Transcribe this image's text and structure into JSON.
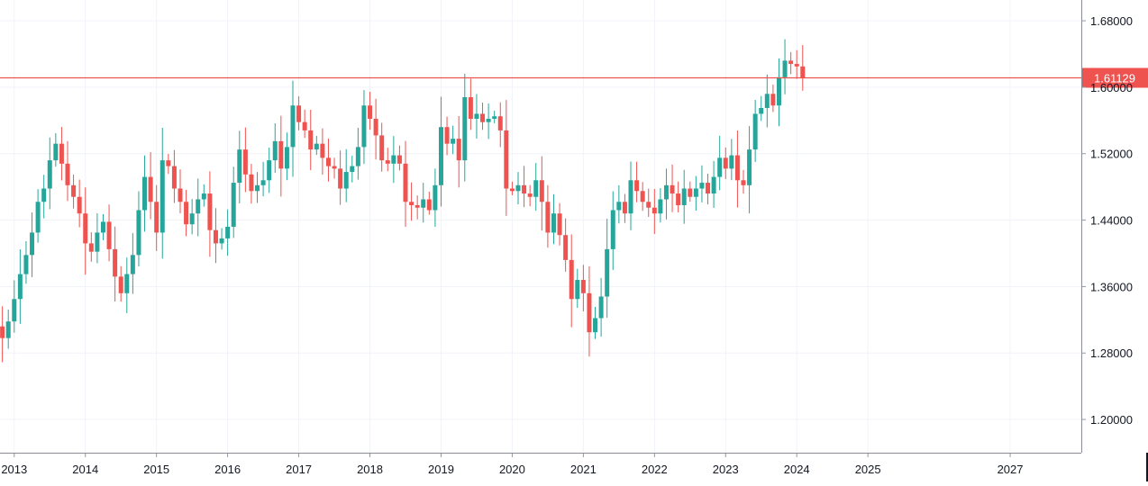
{
  "chart_data": {
    "type": "candlestick",
    "title": "",
    "xlabel": "",
    "ylabel": "",
    "ylim": [
      1.16,
      1.705
    ],
    "x_range": [
      2012.8,
      2028.0
    ],
    "y_ticks": [
      "1.68000",
      "1.60000",
      "1.52000",
      "1.44000",
      "1.36000",
      "1.28000",
      "1.20000"
    ],
    "x_ticks": [
      "2013",
      "2014",
      "2015",
      "2016",
      "2017",
      "2018",
      "2019",
      "2020",
      "2021",
      "2022",
      "2023",
      "2024",
      "2025",
      "2027"
    ],
    "grid": true,
    "up_color": "#26a69a",
    "down_color": "#ef5350",
    "price_line": {
      "value": 1.61129,
      "label": "1.61129",
      "color": "#ef5350"
    },
    "closes": [
      1.298,
      1.262,
      1.305,
      1.345,
      1.312,
      1.298,
      1.318,
      1.345,
      1.375,
      1.398,
      1.425,
      1.462,
      1.478,
      1.512,
      1.532,
      1.508,
      1.482,
      1.468,
      1.448,
      1.412,
      1.402,
      1.425,
      1.438,
      1.405,
      1.372,
      1.352,
      1.375,
      1.398,
      1.452,
      1.492,
      1.462,
      1.425,
      1.512,
      1.505,
      1.478,
      1.462,
      1.435,
      1.448,
      1.465,
      1.472,
      1.428,
      1.412,
      1.418,
      1.432,
      1.485,
      1.525,
      1.495,
      1.475,
      1.482,
      1.488,
      1.512,
      1.535,
      1.502,
      1.528,
      1.578,
      1.558,
      1.548,
      1.525,
      1.532,
      1.515,
      1.505,
      1.502,
      1.478,
      1.498,
      1.505,
      1.528,
      1.578,
      1.562,
      1.542,
      1.512,
      1.508,
      1.518,
      1.508,
      1.462,
      1.458,
      1.455,
      1.465,
      1.452,
      1.482,
      1.552,
      1.532,
      1.538,
      1.512,
      1.588,
      1.562,
      1.568,
      1.558,
      1.562,
      1.565,
      1.548,
      1.478,
      1.475,
      1.482,
      1.472,
      1.468,
      1.488,
      1.462,
      1.425,
      1.448,
      1.422,
      1.392,
      1.345,
      1.368,
      1.352,
      1.305,
      1.322,
      1.348,
      1.405,
      1.452,
      1.462,
      1.448,
      1.488,
      1.475,
      1.462,
      1.455,
      1.448,
      1.465,
      1.482,
      1.472,
      1.458,
      1.478,
      1.468,
      1.478,
      1.485,
      1.472,
      1.492,
      1.515,
      1.502,
      1.518,
      1.488,
      1.482,
      1.525,
      1.568,
      1.575,
      1.592,
      1.578,
      1.612,
      1.632,
      1.628,
      1.625,
      1.61129
    ]
  }
}
